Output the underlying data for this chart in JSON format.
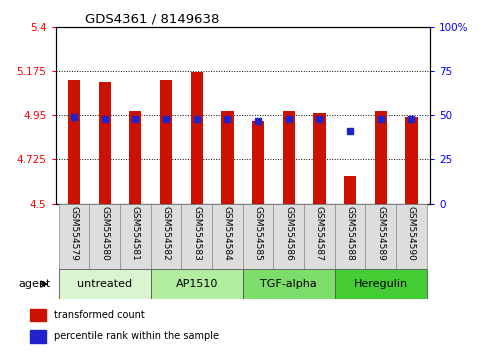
{
  "title": "GDS4361 / 8149638",
  "samples": [
    "GSM554579",
    "GSM554580",
    "GSM554581",
    "GSM554582",
    "GSM554583",
    "GSM554584",
    "GSM554585",
    "GSM554586",
    "GSM554587",
    "GSM554588",
    "GSM554589",
    "GSM554590"
  ],
  "red_values": [
    5.13,
    5.12,
    4.97,
    5.13,
    5.17,
    4.97,
    4.92,
    4.97,
    4.96,
    4.64,
    4.97,
    4.94
  ],
  "blue_values": [
    4.94,
    4.93,
    4.93,
    4.93,
    4.93,
    4.93,
    4.92,
    4.93,
    4.93,
    4.87,
    4.93,
    4.93
  ],
  "ylim_left": [
    4.5,
    5.4
  ],
  "ylim_right": [
    0,
    100
  ],
  "yticks_left": [
    4.5,
    4.725,
    4.95,
    5.175,
    5.4
  ],
  "ytick_labels_left": [
    "4.5",
    "4.725",
    "4.95",
    "5.175",
    "5.4"
  ],
  "yticks_right": [
    0,
    25,
    50,
    75,
    100
  ],
  "ytick_labels_right": [
    "0",
    "25",
    "50",
    "75",
    "100%"
  ],
  "hlines": [
    5.175,
    4.95,
    4.725
  ],
  "groups": [
    {
      "label": "untreated",
      "start": 0,
      "end": 2,
      "color": "#d8f5d0"
    },
    {
      "label": "AP1510",
      "start": 3,
      "end": 5,
      "color": "#b2eda0"
    },
    {
      "label": "TGF-alpha",
      "start": 6,
      "end": 8,
      "color": "#7ddd6a"
    },
    {
      "label": "Heregulin",
      "start": 9,
      "end": 11,
      "color": "#44cc33"
    }
  ],
  "bar_color": "#cc1100",
  "blue_color": "#2222cc",
  "bar_width": 0.4,
  "legend_items": [
    {
      "label": "transformed count",
      "color": "#cc1100"
    },
    {
      "label": "percentile rank within the sample",
      "color": "#2222cc"
    }
  ]
}
